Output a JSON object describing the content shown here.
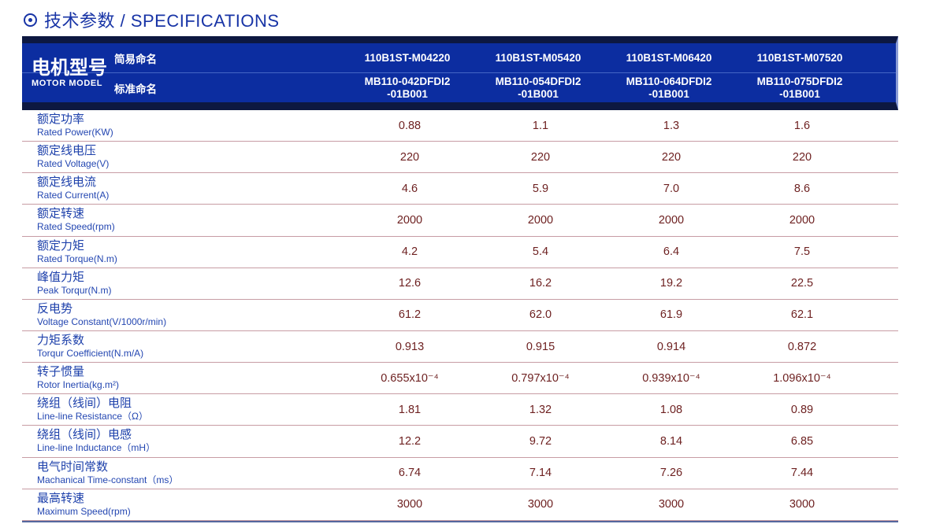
{
  "page": {
    "title": "技术参数 / SPECIFICATIONS"
  },
  "colors": {
    "title_blue": "#1834a6",
    "header_blue": "#0c2da0",
    "header_navy_strip": "#0d1841",
    "header_separator": "#4565c4",
    "label_blue": "#1e41ab",
    "value_maroon": "#6e2121",
    "divider_pink": "#c79ca4",
    "table_bottom_line": "#55679f"
  },
  "table": {
    "header": {
      "row_label_cn": "电机型号",
      "row_label_en": "MOTOR MODEL",
      "simple_name_label": "简易命名",
      "standard_name_label": "标准命名",
      "simple_names": [
        "110B1ST-M04220",
        "110B1ST-M05420",
        "110B1ST-M06420",
        "110B1ST-M07520"
      ],
      "standard_names": [
        "MB110-042DFDI2\n-01B001",
        "MB110-054DFDI2\n-01B001",
        "MB110-064DFDI2\n-01B001",
        "MB110-075DFDI2\n-01B001"
      ]
    },
    "rows": [
      {
        "cn": "额定功率",
        "en": "Rated Power(KW)",
        "values": [
          "0.88",
          "1.1",
          "1.3",
          "1.6"
        ]
      },
      {
        "cn": "额定线电压",
        "en": "Rated Voltage(V)",
        "values": [
          "220",
          "220",
          "220",
          "220"
        ]
      },
      {
        "cn": "额定线电流",
        "en": "Rated Current(A)",
        "values": [
          "4.6",
          "5.9",
          "7.0",
          "8.6"
        ]
      },
      {
        "cn": "额定转速",
        "en": "Rated Speed(rpm)",
        "values": [
          "2000",
          "2000",
          "2000",
          "2000"
        ]
      },
      {
        "cn": "额定力矩",
        "en": "Rated Torque(N.m)",
        "values": [
          "4.2",
          "5.4",
          "6.4",
          "7.5"
        ]
      },
      {
        "cn": "峰值力矩",
        "en": "Peak Torqur(N.m)",
        "values": [
          "12.6",
          "16.2",
          "19.2",
          "22.5"
        ]
      },
      {
        "cn": "反电势",
        "en": "Voltage Constant(V/1000r/min)",
        "values": [
          "61.2",
          "62.0",
          "61.9",
          "62.1"
        ]
      },
      {
        "cn": "力矩系数",
        "en": "Torqur Coefficient(N.m/A)",
        "values": [
          "0.913",
          "0.915",
          "0.914",
          "0.872"
        ]
      },
      {
        "cn": "转子惯量",
        "en": "Rotor Inertia(kg.m²)",
        "values": [
          "0.655x10⁻⁴",
          "0.797x10⁻⁴",
          "0.939x10⁻⁴",
          "1.096x10⁻⁴"
        ]
      },
      {
        "cn": "绕组（线间）电阻",
        "en": "Line-line Resistance（Ω）",
        "values": [
          "1.81",
          "1.32",
          "1.08",
          "0.89"
        ]
      },
      {
        "cn": "绕组（线间）电感",
        "en": "Line-line Inductance（mH）",
        "values": [
          "12.2",
          "9.72",
          "8.14",
          "6.85"
        ]
      },
      {
        "cn": "电气时间常数",
        "en": "Machanical Time-constant（ms）",
        "values": [
          "6.74",
          "7.14",
          "7.26",
          "7.44"
        ]
      },
      {
        "cn": "最高转速",
        "en": "Maximum Speed(rpm)",
        "values": [
          "3000",
          "3000",
          "3000",
          "3000"
        ]
      }
    ]
  }
}
